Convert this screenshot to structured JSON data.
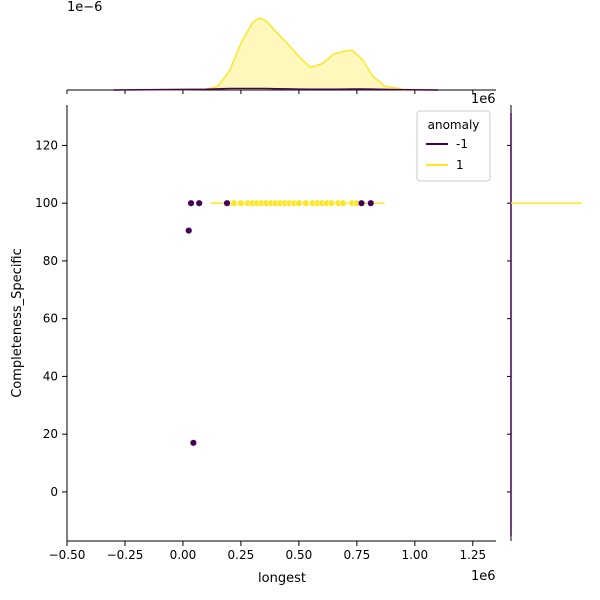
{
  "chart_data": {
    "type": "scatter",
    "title": "",
    "xlabel": "longest",
    "ylabel": "Completeness_Specific",
    "x_offset_label": "1e6",
    "y_offset_label": "",
    "top_marginal_offset_label": "1e−6",
    "xlim": [
      -0.5,
      1.35
    ],
    "ylim": [
      -17,
      134
    ],
    "x_ticks": [
      {
        "value": -0.5,
        "label": "−0.50"
      },
      {
        "value": -0.25,
        "label": "−0.25"
      },
      {
        "value": 0.0,
        "label": "0.00"
      },
      {
        "value": 0.25,
        "label": "0.25"
      },
      {
        "value": 0.5,
        "label": "0.50"
      },
      {
        "value": 0.75,
        "label": "0.75"
      },
      {
        "value": 1.0,
        "label": "1.00"
      },
      {
        "value": 1.25,
        "label": "1.25"
      }
    ],
    "y_ticks": [
      {
        "value": 0,
        "label": "0"
      },
      {
        "value": 20,
        "label": "20"
      },
      {
        "value": 40,
        "label": "40"
      },
      {
        "value": 60,
        "label": "60"
      },
      {
        "value": 80,
        "label": "80"
      },
      {
        "value": 100,
        "label": "100"
      },
      {
        "value": 120,
        "label": "120"
      }
    ],
    "legend": {
      "title": "anomaly",
      "placement": "top-right",
      "entries": [
        {
          "label": "-1",
          "color": "#440154"
        },
        {
          "label": "1",
          "color": "#fde725"
        }
      ]
    },
    "series": [
      {
        "color": "#440154",
        "points": [
          [
            0.035,
            100
          ],
          [
            0.07,
            100
          ],
          [
            0.19,
            100
          ],
          [
            0.77,
            100
          ],
          [
            0.81,
            100
          ],
          [
            0.025,
            90.5
          ],
          [
            0.045,
            17
          ]
        ]
      },
      {
        "color": "#fde725",
        "points": [
          [
            0.2,
            100
          ],
          [
            0.22,
            100
          ],
          [
            0.25,
            100
          ],
          [
            0.28,
            100
          ],
          [
            0.3,
            100
          ],
          [
            0.32,
            100
          ],
          [
            0.34,
            100
          ],
          [
            0.36,
            100
          ],
          [
            0.38,
            100
          ],
          [
            0.4,
            100
          ],
          [
            0.42,
            100
          ],
          [
            0.44,
            100
          ],
          [
            0.46,
            100
          ],
          [
            0.48,
            100
          ],
          [
            0.5,
            100
          ],
          [
            0.53,
            100
          ],
          [
            0.56,
            100
          ],
          [
            0.58,
            100
          ],
          [
            0.6,
            100
          ],
          [
            0.62,
            100
          ],
          [
            0.64,
            100
          ],
          [
            0.67,
            100
          ],
          [
            0.69,
            100
          ],
          [
            0.73,
            100
          ],
          [
            0.75,
            100
          ]
        ]
      }
    ],
    "top_marginal_kde": {
      "x": [
        -0.3,
        0.1,
        0.15,
        0.2,
        0.25,
        0.3,
        0.33,
        0.36,
        0.4,
        0.45,
        0.5,
        0.55,
        0.6,
        0.65,
        0.7,
        0.73,
        0.77,
        0.82,
        0.87,
        0.95,
        1.1
      ],
      "yellow": [
        0,
        0.01,
        0.05,
        0.25,
        0.62,
        0.9,
        0.96,
        0.92,
        0.78,
        0.62,
        0.45,
        0.3,
        0.35,
        0.48,
        0.52,
        0.53,
        0.42,
        0.18,
        0.05,
        0.01,
        0
      ],
      "purple": [
        0,
        0.01,
        0.015,
        0.02,
        0.02,
        0.02,
        0.02,
        0.02,
        0.018,
        0.015,
        0.012,
        0.01,
        0.01,
        0.01,
        0.012,
        0.013,
        0.014,
        0.012,
        0.008,
        0.004,
        0
      ]
    },
    "right_marginal": {
      "yellow_spike_value": 100
    }
  }
}
